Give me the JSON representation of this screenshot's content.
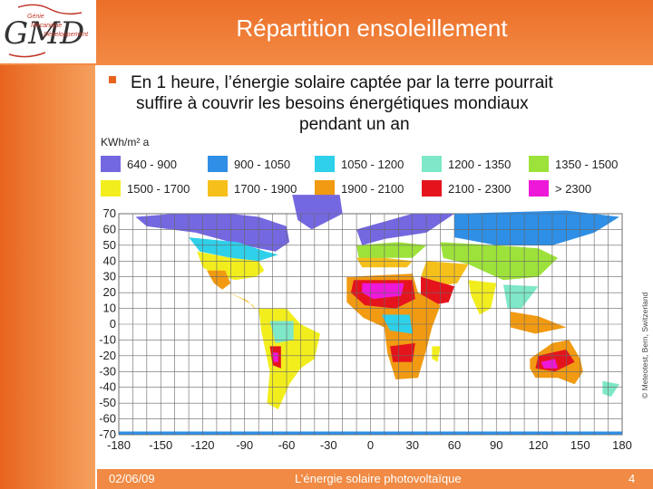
{
  "slide": {
    "title": "Répartition ensoleillement",
    "bullet_lines": [
      "En 1 heure, l’énergie solaire captée par la terre pourrait",
      "suffire à couvrir les besoins énergétiques mondiaux",
      "pendant un an"
    ],
    "footer_date": "02/06/09",
    "footer_title": "L’énergie solaire photovoltaïque",
    "page_number": "4"
  },
  "logo": {
    "letters": "GMD",
    "tagline_1": "Génie",
    "tagline_2": "Mécanique",
    "tagline_3": "Développement"
  },
  "map": {
    "unit_label": "KWh/m² a",
    "credit": "© Meteotest, Bern, Switzerland",
    "legend": [
      {
        "label": "640 - 900",
        "color": "#7468e0"
      },
      {
        "label": "900 - 1050",
        "color": "#2f8fe6"
      },
      {
        "label": "1050 - 1200",
        "color": "#2ed0ea"
      },
      {
        "label": "1200 - 1350",
        "color": "#7ee8c8"
      },
      {
        "label": "1350 - 1500",
        "color": "#9de23a"
      },
      {
        "label": "1500 - 1700",
        "color": "#f2ee1e"
      },
      {
        "label": "1700 - 1900",
        "color": "#f6c01a"
      },
      {
        "label": "1900 - 2100",
        "color": "#f19a12"
      },
      {
        "label": "2100 - 2300",
        "color": "#e5141c"
      },
      {
        "label": "> 2300",
        "color": "#ee18d8"
      }
    ],
    "lat_ticks": [
      "70",
      "60",
      "50",
      "40",
      "30",
      "20",
      "10",
      "0",
      "-10",
      "-20",
      "-30",
      "-40",
      "-50",
      "-60",
      "-70"
    ],
    "lon_ticks": [
      "-180",
      "-150",
      "-120",
      "-90",
      "-60",
      "-30",
      "0",
      "30",
      "60",
      "90",
      "120",
      "150",
      "180"
    ]
  }
}
